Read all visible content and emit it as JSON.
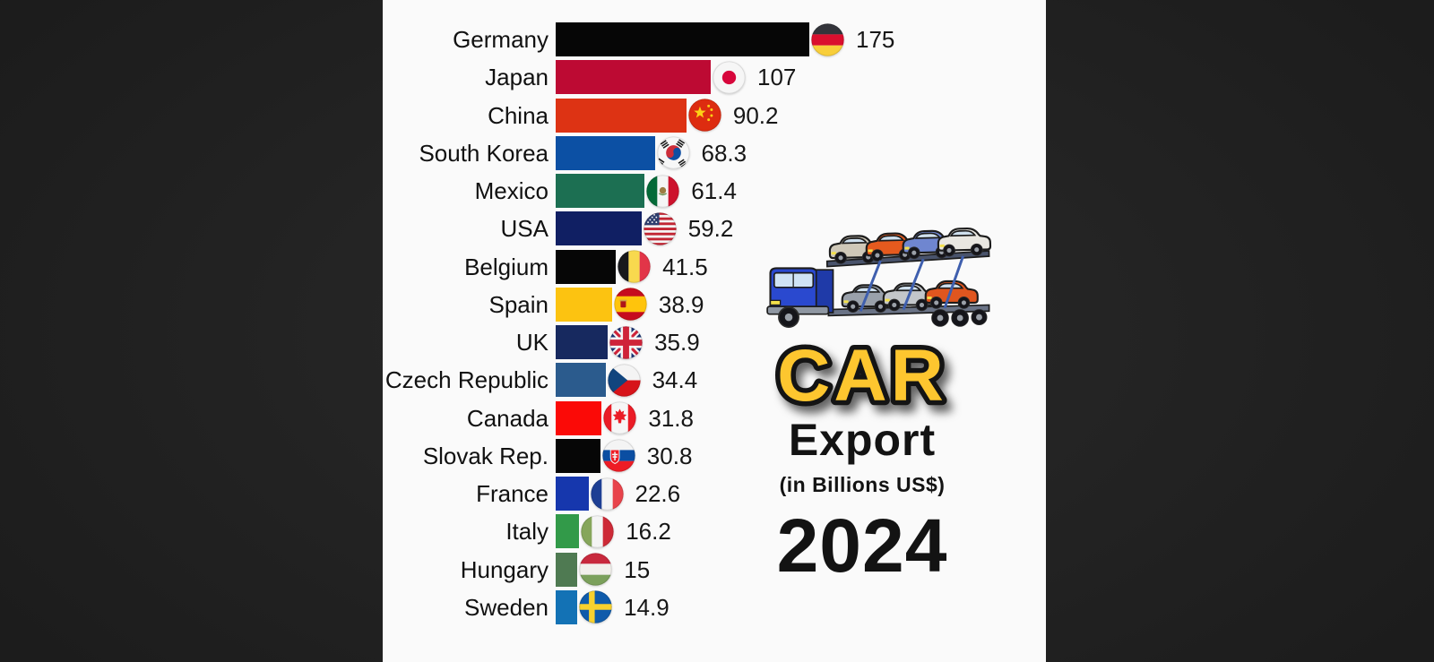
{
  "colors": {
    "background": "#1b1b1b",
    "canvas": "#fafafa",
    "label_text": "#111111",
    "value_text": "#161616"
  },
  "chart_data": {
    "type": "bar",
    "orientation": "horizontal",
    "title": "CAR Export",
    "unit": "in Billions US$",
    "year": "2024",
    "xlim": [
      0,
      175
    ],
    "grid": false,
    "legend": false,
    "categories": [
      "Germany",
      "Japan",
      "China",
      "South Korea",
      "Mexico",
      "USA",
      "Belgium",
      "Spain",
      "UK",
      "Czech Republic",
      "Canada",
      "Slovak Rep.",
      "France",
      "Italy",
      "Hungary",
      "Sweden"
    ],
    "values": [
      175,
      107,
      90.2,
      68.3,
      61.4,
      59.2,
      41.5,
      38.9,
      35.9,
      34.4,
      31.8,
      30.8,
      22.6,
      16.2,
      15,
      14.9
    ],
    "bar_colors": [
      "#060606",
      "#bd0a33",
      "#dd3314",
      "#0c50a4",
      "#1c6f52",
      "#101f63",
      "#060606",
      "#fcc311",
      "#17295f",
      "#2b5b8d",
      "#fb0a07",
      "#060606",
      "#1637ad",
      "#329a49",
      "#4f7a52",
      "#1372b5"
    ],
    "flags": [
      "flag-germany",
      "flag-japan",
      "flag-china",
      "flag-south-korea",
      "flag-mexico",
      "flag-usa",
      "flag-belgium",
      "flag-spain",
      "flag-uk",
      "flag-czech-republic",
      "flag-canada",
      "flag-slovakia",
      "flag-france",
      "flag-italy",
      "flag-hungary",
      "flag-sweden"
    ]
  },
  "side_panel": {
    "illustration": "car-carrier-truck",
    "title_word": "CAR",
    "title_color": "#fdc62f",
    "title_outline": "#141414",
    "subtitle_word": "Export",
    "unit_label": "(in Billions US$)",
    "year": "2024"
  }
}
